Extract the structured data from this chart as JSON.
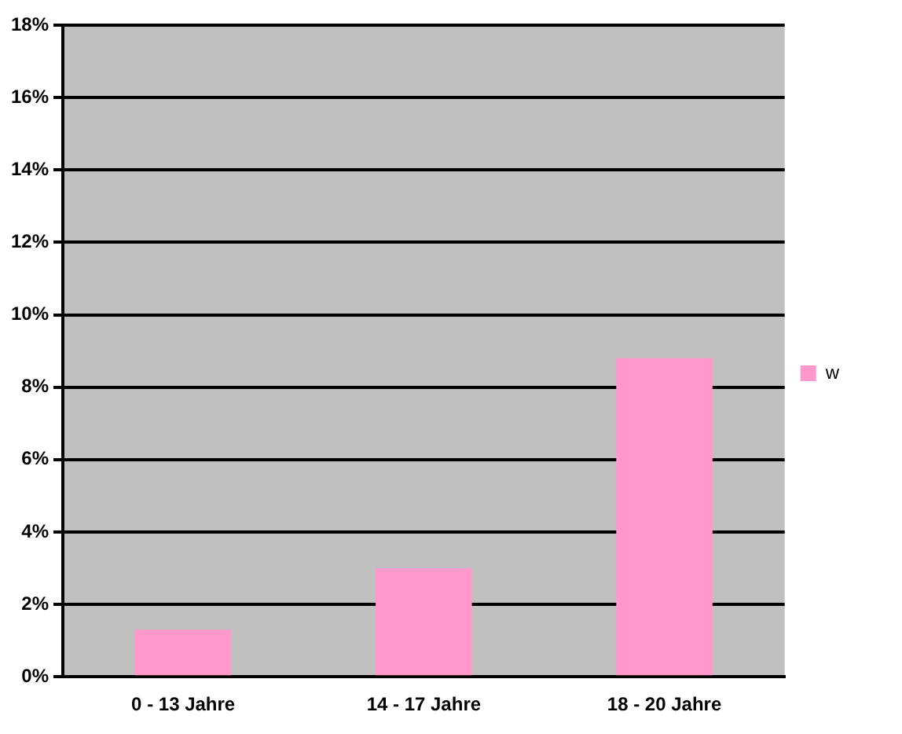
{
  "chart_data": {
    "type": "bar",
    "categories": [
      "0 - 13 Jahre",
      "14 - 17 Jahre",
      "18 - 20 Jahre"
    ],
    "series": [
      {
        "name": "w",
        "color": "#ff99cc",
        "values": [
          1.3,
          3.0,
          8.8
        ]
      }
    ],
    "ylim": [
      0,
      18
    ],
    "yticks": [
      {
        "value": 0,
        "label": "0%"
      },
      {
        "value": 2,
        "label": "2%"
      },
      {
        "value": 4,
        "label": "4%"
      },
      {
        "value": 6,
        "label": "6%"
      },
      {
        "value": 8,
        "label": "8%"
      },
      {
        "value": 10,
        "label": "10%"
      },
      {
        "value": 12,
        "label": "12%"
      },
      {
        "value": 14,
        "label": "14%"
      },
      {
        "value": 16,
        "label": "16%"
      },
      {
        "value": 18,
        "label": "18%"
      }
    ],
    "grid": "y",
    "legend": "right"
  }
}
